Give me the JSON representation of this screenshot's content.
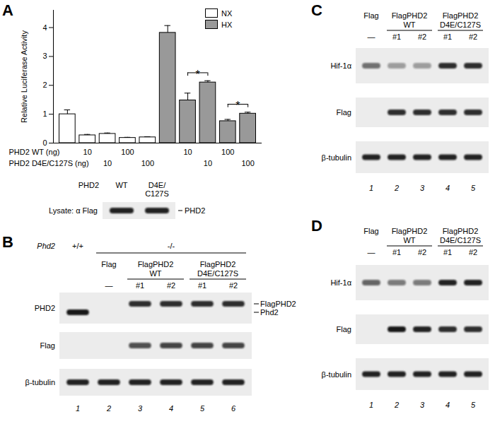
{
  "chart_data": {
    "type": "bar",
    "panel": "A",
    "categories": [
      null,
      null,
      null,
      null,
      null,
      null,
      null,
      null,
      null,
      null
    ],
    "series": [
      {
        "name": "NX",
        "color": "#ffffff",
        "values": [
          1.0,
          0.27,
          0.32,
          0.18,
          0.2,
          null,
          null,
          null,
          null,
          null
        ],
        "errors": [
          0.15,
          0.03,
          0.03,
          0.02,
          0.02,
          null,
          null,
          null,
          null,
          null
        ]
      },
      {
        "name": "HX",
        "color": "#999999",
        "values": [
          null,
          null,
          null,
          null,
          null,
          3.82,
          1.48,
          2.1,
          0.76,
          1.02
        ],
        "errors": [
          null,
          null,
          null,
          null,
          null,
          0.25,
          0.25,
          0.06,
          0.06,
          0.05
        ]
      }
    ],
    "y_label": "Relative Luciferase Activity",
    "ylim": [
      0,
      4.6
    ],
    "yticks": [
      0,
      1,
      2,
      3,
      4
    ],
    "legend": "top-right",
    "treatments": [
      {
        "label": "PHD2 WT (ng)",
        "values": [
          null,
          10,
          null,
          100,
          null,
          null,
          10,
          null,
          100,
          null
        ]
      },
      {
        "label": "PHD2 D4E/C127S (ng)",
        "values": [
          null,
          null,
          10,
          null,
          100,
          null,
          null,
          10,
          null,
          100
        ]
      }
    ],
    "annotations": [
      {
        "text": "*",
        "between": [
          6,
          7
        ]
      },
      {
        "text": "*",
        "between": [
          8,
          9
        ]
      }
    ]
  },
  "inset": {
    "label": "PHD2",
    "lanes": [
      "WT",
      "D4E/C127S"
    ],
    "row_label": "Lysate: α Flag",
    "bands": [
      {
        "name": "PHD2",
        "intensity": [
          0.9,
          0.9
        ]
      }
    ]
  },
  "blots": [
    {
      "panel": "B",
      "genotype": {
        "label": "Phd2",
        "groups": [
          {
            "text": "+/+",
            "lanes": [
              1,
              1
            ]
          },
          {
            "text": "-/-",
            "lanes": [
              2,
              6
            ]
          }
        ]
      },
      "groups": [
        {
          "name": "Flag",
          "lanes": [
            2,
            2
          ],
          "sub": [
            "—"
          ]
        },
        {
          "name": "FlagPHD2",
          "variant": "WT",
          "lanes": [
            3,
            4
          ],
          "sub": [
            "#1",
            "#2"
          ]
        },
        {
          "name": "FlagPHD2",
          "variant": "D4E/C127S",
          "lanes": [
            5,
            6
          ],
          "sub": [
            "#1",
            "#2"
          ]
        }
      ],
      "rows": [
        {
          "label": "PHD2",
          "bands": [
            {
              "name": "FlagPHD2",
              "intensity": [
                0,
                0,
                0.85,
                0.85,
                0.85,
                0.85
              ]
            },
            {
              "name": "Phd2",
              "intensity": [
                0.95,
                0,
                0,
                0,
                0,
                0
              ]
            }
          ]
        },
        {
          "label": "Flag",
          "bands": [
            {
              "intensity": [
                0,
                0,
                0.7,
                0.75,
                0.75,
                0.75
              ]
            }
          ]
        },
        {
          "label": "β-tubulin",
          "bands": [
            {
              "intensity": [
                0.9,
                0.9,
                0.9,
                0.9,
                0.9,
                0.9
              ]
            }
          ]
        }
      ],
      "lane_numbers": [
        1,
        2,
        3,
        4,
        5,
        6
      ]
    },
    {
      "panel": "C",
      "groups": [
        {
          "name": "Flag",
          "lanes": [
            1,
            1
          ],
          "sub": [
            "—"
          ]
        },
        {
          "name": "FlagPHD2",
          "variant": "WT",
          "lanes": [
            2,
            3
          ],
          "sub": [
            "#1",
            "#2"
          ]
        },
        {
          "name": "FlagPHD2",
          "variant": "D4E/C127S",
          "lanes": [
            4,
            5
          ],
          "sub": [
            "#1",
            "#2"
          ]
        }
      ],
      "rows": [
        {
          "label": "Hif-1α",
          "bands": [
            {
              "intensity": [
                0.55,
                0.35,
                0.35,
                0.85,
                0.85
              ]
            }
          ]
        },
        {
          "label": "Flag",
          "bands": [
            {
              "intensity": [
                0,
                0.85,
                0.85,
                0.85,
                0.85
              ]
            }
          ]
        },
        {
          "label": "β-tubulin",
          "bands": [
            {
              "intensity": [
                0.9,
                0.9,
                0.9,
                0.9,
                0.9
              ]
            }
          ]
        }
      ],
      "lane_numbers": [
        1,
        2,
        3,
        4,
        5
      ]
    },
    {
      "panel": "D",
      "groups": [
        {
          "name": "Flag",
          "lanes": [
            1,
            1
          ],
          "sub": [
            "—"
          ]
        },
        {
          "name": "FlagPHD2",
          "variant": "WT",
          "lanes": [
            2,
            3
          ],
          "sub": [
            "#1",
            "#2"
          ]
        },
        {
          "name": "FlagPHD2",
          "variant": "D4E/C127S",
          "lanes": [
            4,
            5
          ],
          "sub": [
            "#1",
            "#2"
          ]
        }
      ],
      "rows": [
        {
          "label": "Hif-1α",
          "bands": [
            {
              "intensity": [
                0.6,
                0.5,
                0.5,
                0.9,
                0.9
              ]
            }
          ]
        },
        {
          "label": "Flag",
          "bands": [
            {
              "intensity": [
                0,
                0.95,
                0.9,
                0.85,
                0.85
              ]
            }
          ]
        },
        {
          "label": "β-tubulin",
          "bands": [
            {
              "intensity": [
                0.9,
                0.9,
                0.9,
                0.9,
                0.9
              ]
            }
          ]
        }
      ],
      "lane_numbers": [
        1,
        2,
        3,
        4,
        5
      ]
    }
  ]
}
